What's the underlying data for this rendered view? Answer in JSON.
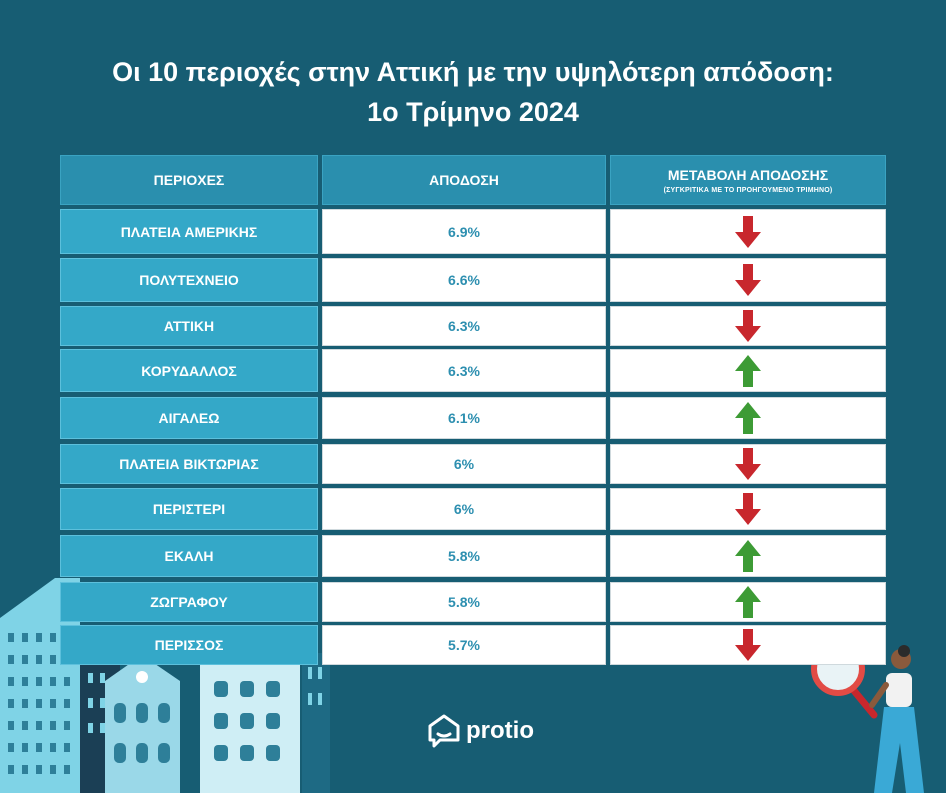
{
  "title": {
    "line1": "Οι 10 περιοχές στην Αττική με την υψηλότερη απόδοση:",
    "line2": "1ο Τρίμηνο 2024"
  },
  "table": {
    "headers": {
      "region": "ΠΕΡΙΟΧΕΣ",
      "yield": "ΑΠΟΔΟΣΗ",
      "change": "ΜΕΤΑΒΟΛΗ ΑΠΟΔΟΣΗΣ",
      "change_sub": "(ΣΥΓΚΡΙΤΙΚΑ ΜΕ ΤΟ ΠΡΟΗΓΟΥΜΕΝΟ ΤΡΙΜΗΝΟ)"
    },
    "rows": [
      {
        "region": "ΠΛΑΤΕΙΑ ΑΜΕΡΙΚΗΣ",
        "yield": "6.9%",
        "trend": "down"
      },
      {
        "region": "ΠΟΛΥΤΕΧΝΕΙΟ",
        "yield": "6.6%",
        "trend": "down"
      },
      {
        "region": "ΑΤΤΙΚΗ",
        "yield": "6.3%",
        "trend": "down"
      },
      {
        "region": "ΚΟΡΥΔΑΛΛΟΣ",
        "yield": "6.3%",
        "trend": "up"
      },
      {
        "region": "ΑΙΓΑΛΕΩ",
        "yield": "6.1%",
        "trend": "up"
      },
      {
        "region": "ΠΛΑΤΕΙΑ ΒΙΚΤΩΡΙΑΣ",
        "yield": "6%",
        "trend": "down"
      },
      {
        "region": "ΠΕΡΙΣΤΕΡΙ",
        "yield": "6%",
        "trend": "down"
      },
      {
        "region": "ΕΚΑΛΗ",
        "yield": "5.8%",
        "trend": "up"
      },
      {
        "region": "ΖΩΓΡΑΦΟΥ",
        "yield": "5.8%",
        "trend": "up"
      },
      {
        "region": "ΠΕΡΙΣΣΟΣ",
        "yield": "5.7%",
        "trend": "down"
      }
    ]
  },
  "colors": {
    "background": "#175d73",
    "header": "#2a8fae",
    "region_cell": "#34a8c8",
    "yield_text": "#2d8fb0",
    "arrow_down": "#c8272d",
    "arrow_up": "#3d9b35"
  },
  "icons": {
    "down": "arrow-down-icon",
    "up": "arrow-up-icon",
    "logo": "house-logo-icon"
  },
  "logo": {
    "text": "protio"
  }
}
